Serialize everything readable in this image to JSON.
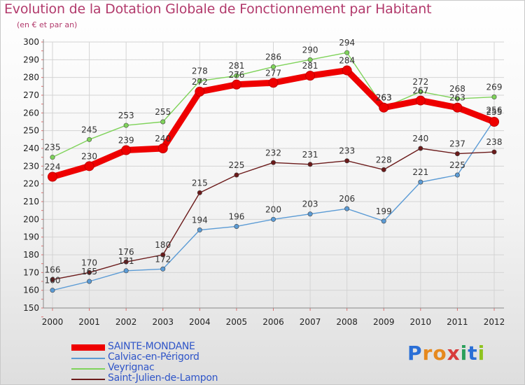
{
  "header": {
    "title": "Evolution de la Dotation Globale de Fonctionnement par Habitant",
    "subtitle": "(en € et par an)"
  },
  "logo": {
    "letters": [
      "P",
      "r",
      "o",
      "x",
      "i",
      "t",
      "i"
    ],
    "colors": [
      "#2a6fd6",
      "#e6891e",
      "#e6891e",
      "#d83a3a",
      "#2aa05a",
      "#2a6fd6",
      "#8fc31f"
    ]
  },
  "chart_data": {
    "type": "line",
    "x": [
      "2000",
      "2001",
      "2002",
      "2003",
      "2004",
      "2005",
      "2006",
      "2007",
      "2008",
      "2009",
      "2010",
      "2011",
      "2012"
    ],
    "ylim": [
      150,
      300
    ],
    "yticks": [
      150,
      160,
      170,
      180,
      190,
      200,
      210,
      220,
      230,
      240,
      250,
      260,
      270,
      280,
      290,
      300
    ],
    "grid": true,
    "legend_position": "bottom-left",
    "series": [
      {
        "name": "Calviac-en-Périgord",
        "color": "#5b9bd5",
        "values": [
          160,
          165,
          171,
          172,
          194,
          196,
          200,
          203,
          206,
          199,
          221,
          225,
          256
        ]
      },
      {
        "name": "Veyrignac",
        "color": "#7fd35a",
        "values": [
          235,
          245,
          253,
          255,
          278,
          281,
          286,
          290,
          294,
          263,
          272,
          268,
          269
        ]
      },
      {
        "name": "Saint-Julien-de-Lampon",
        "color": "#6b1a1a",
        "values": [
          166,
          170,
          176,
          180,
          215,
          225,
          232,
          231,
          233,
          228,
          240,
          237,
          238
        ]
      },
      {
        "name": "SAINTE-MONDANE",
        "color": "#ee0000",
        "values": [
          224,
          230,
          239,
          240,
          272,
          276,
          277,
          281,
          284,
          263,
          267,
          263,
          255
        ]
      }
    ]
  }
}
